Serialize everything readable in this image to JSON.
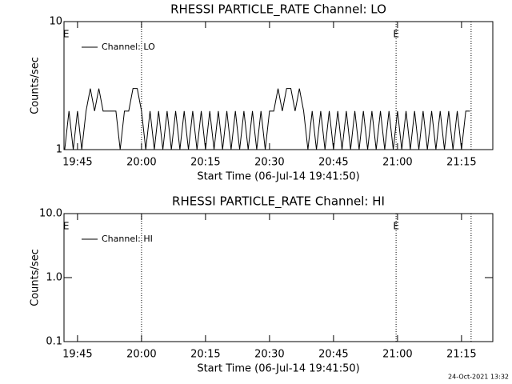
{
  "chart_data": [
    {
      "type": "line",
      "title": "RHESSI PARTICLE_RATE Channel: LO",
      "xlabel": "Start Time (06-Jul-14 19:41:50)",
      "ylabel": "Counts/sec",
      "log_y": true,
      "ylim": [
        1,
        10
      ],
      "yticks": [
        1,
        10
      ],
      "xlim": [
        "19:41:50",
        "21:22:20"
      ],
      "xticks": [
        "19:45",
        "20:00",
        "20:15",
        "20:30",
        "20:45",
        "21:00",
        "21:15"
      ],
      "legend": "upper left",
      "vlines": [
        "20:00:00",
        "20:59:40",
        "21:17:15"
      ],
      "annotations": [
        {
          "x": "19:42:20",
          "text": "E"
        },
        {
          "x": "20:59:40",
          "text": "E"
        }
      ],
      "x": [
        "19:42",
        "19:43",
        "19:44",
        "19:45",
        "19:46",
        "19:47",
        "19:48",
        "19:49",
        "19:50",
        "19:51",
        "19:52",
        "19:53",
        "19:54",
        "19:55",
        "19:56",
        "19:57",
        "19:58",
        "19:59",
        "20:00",
        "20:01",
        "20:02",
        "20:03",
        "20:04",
        "20:05",
        "20:06",
        "20:07",
        "20:08",
        "20:09",
        "20:10",
        "20:11",
        "20:12",
        "20:13",
        "20:14",
        "20:15",
        "20:16",
        "20:17",
        "20:18",
        "20:19",
        "20:20",
        "20:21",
        "20:22",
        "20:23",
        "20:24",
        "20:25",
        "20:26",
        "20:27",
        "20:28",
        "20:29",
        "20:30",
        "20:31",
        "20:32",
        "20:33",
        "20:34",
        "20:35",
        "20:36",
        "20:37",
        "20:38",
        "20:39",
        "20:40",
        "20:41",
        "20:42",
        "20:43",
        "20:44",
        "20:45",
        "20:46",
        "20:47",
        "20:48",
        "20:49",
        "20:50",
        "20:51",
        "20:52",
        "20:53",
        "20:54",
        "20:55",
        "20:56",
        "20:57",
        "20:58",
        "20:59",
        "21:00",
        "21:01",
        "21:02",
        "21:03",
        "21:04",
        "21:05",
        "21:06",
        "21:07",
        "21:08",
        "21:09",
        "21:10",
        "21:11",
        "21:12",
        "21:13",
        "21:14",
        "21:15",
        "21:16",
        "21:17"
      ],
      "series": [
        {
          "name": "Channel: LO",
          "color": "#000000",
          "values": [
            1,
            2,
            1,
            2,
            1,
            2,
            3,
            2,
            3,
            2,
            2,
            2,
            2,
            1,
            2,
            2,
            3,
            3,
            2,
            1,
            2,
            1,
            2,
            1,
            2,
            1,
            2,
            1,
            2,
            1,
            2,
            1,
            2,
            1,
            2,
            1,
            2,
            1,
            2,
            1,
            2,
            1,
            2,
            1,
            2,
            1,
            2,
            1,
            2,
            2,
            3,
            2,
            3,
            3,
            2,
            3,
            2,
            1,
            2,
            1,
            2,
            1,
            2,
            1,
            2,
            1,
            2,
            1,
            2,
            1,
            2,
            1,
            2,
            1,
            2,
            1,
            2,
            1,
            2,
            1,
            2,
            1,
            2,
            1,
            2,
            1,
            2,
            1,
            2,
            1,
            2,
            1,
            2,
            1,
            2,
            2
          ]
        }
      ]
    },
    {
      "type": "line",
      "title": "RHESSI PARTICLE_RATE Channel: HI",
      "xlabel": "Start Time (06-Jul-14 19:41:50)",
      "ylabel": "Counts/sec",
      "log_y": true,
      "ylim": [
        0.1,
        10
      ],
      "yticks": [
        {
          "value": 0.1,
          "label": "0.1"
        },
        {
          "value": 1,
          "label": "1.0"
        },
        {
          "value": 10,
          "label": "10.0"
        }
      ],
      "xlim": [
        "19:41:50",
        "21:22:20"
      ],
      "xticks": [
        "19:45",
        "20:00",
        "20:15",
        "20:30",
        "20:45",
        "21:00",
        "21:15"
      ],
      "legend": "upper left",
      "vlines": [
        "20:00:00",
        "20:59:40",
        "21:17:15"
      ],
      "annotations": [
        {
          "x": "19:42:20",
          "text": "E"
        },
        {
          "x": "20:59:40",
          "text": "E"
        }
      ],
      "x": [],
      "series": [
        {
          "name": "Channel: HI",
          "color": "#000000",
          "values": []
        }
      ]
    }
  ],
  "footer": "24-Oct-2021 13:32"
}
